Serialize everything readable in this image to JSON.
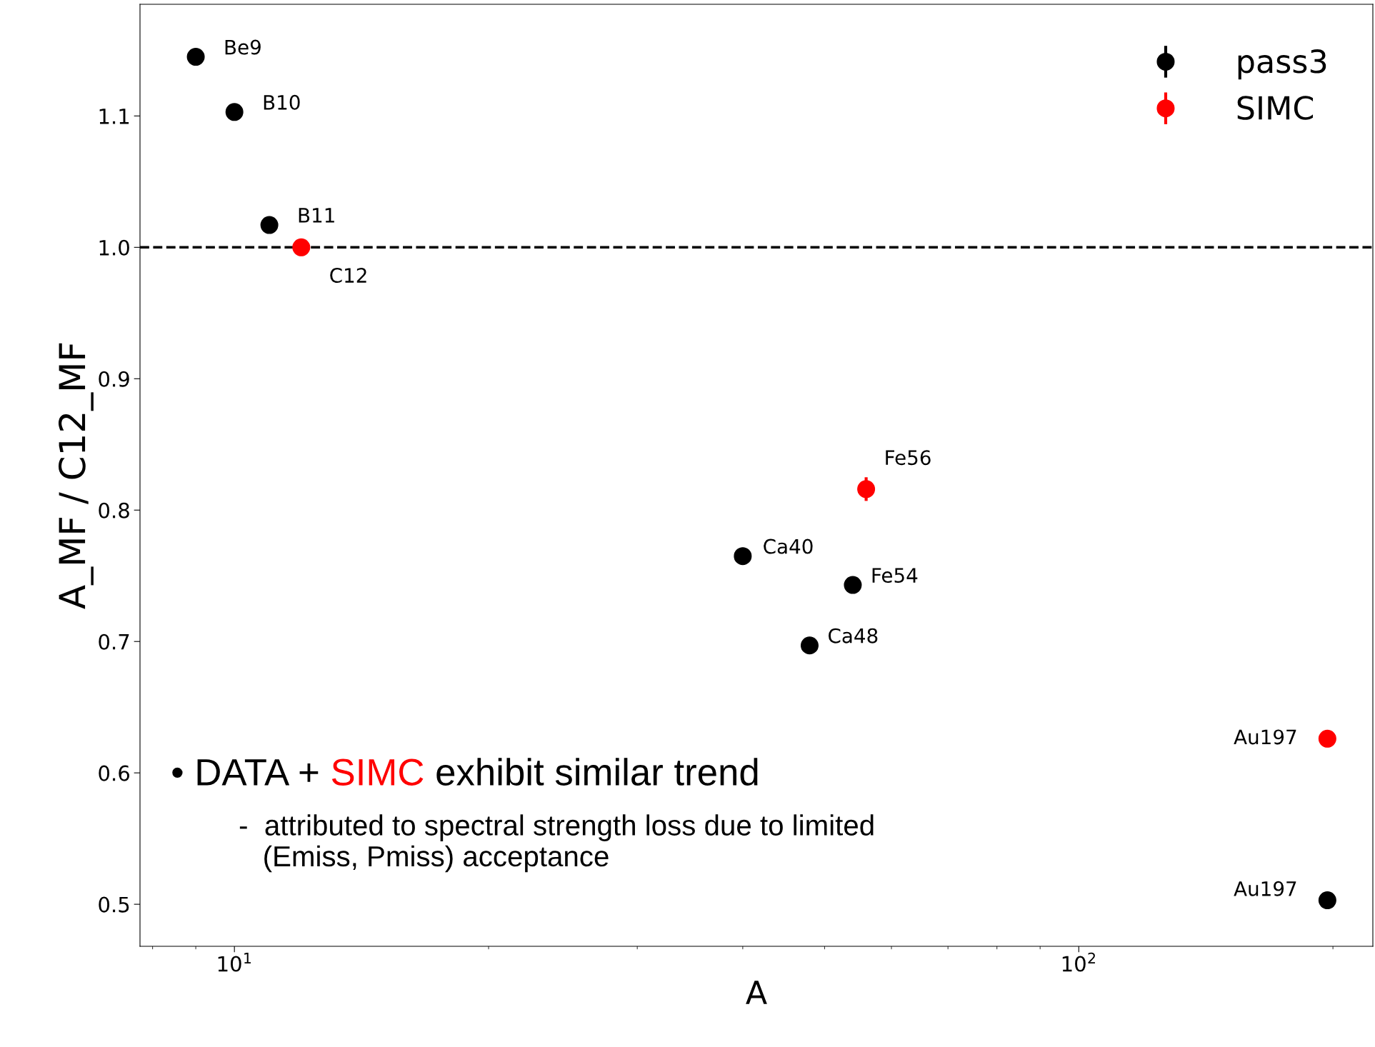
{
  "chart_data": {
    "type": "scatter",
    "xlabel": "A",
    "ylabel": "A_MF / C12_MF",
    "log": "x",
    "xlim": [
      7.73,
      223
    ],
    "xticks": [
      {
        "value": 10,
        "label": "10$^{1}$"
      },
      {
        "value": 100,
        "label": "10$^{2}$"
      }
    ],
    "ylim": [
      0.468,
      1.185
    ],
    "yticks": [
      {
        "value": 0.5,
        "label": "0.5"
      },
      {
        "value": 0.6,
        "label": "0.6"
      },
      {
        "value": 0.7,
        "label": "0.7"
      },
      {
        "value": 0.8,
        "label": "0.8"
      },
      {
        "value": 0.9,
        "label": "0.9"
      },
      {
        "value": 1.0,
        "label": "1.0"
      },
      {
        "value": 1.1,
        "label": "1.1"
      }
    ],
    "grid": false,
    "legend": "top right",
    "marker": "circle",
    "series": [
      {
        "name": "pass3",
        "color": "#000000",
        "x": [
          9,
          10,
          11,
          40,
          54,
          48,
          197
        ],
        "values": [
          1.145,
          1.103,
          1.017,
          0.765,
          0.743,
          0.697,
          0.503
        ],
        "errors": [
          null,
          null,
          null,
          null,
          null,
          null,
          null
        ]
      },
      {
        "name": "SIMC",
        "color": "#ff0000",
        "x": [
          12,
          56,
          197
        ],
        "values": [
          1.0,
          0.816,
          0.626
        ],
        "errors": [
          null,
          0.009,
          null
        ]
      }
    ],
    "ref_lines": [
      {
        "axis": "y",
        "value": 1.0,
        "color": "#000000",
        "line_style": "dashed"
      }
    ],
    "annotations": [
      {
        "text": "Be9",
        "x": 9,
        "y": 1.145
      },
      {
        "text": "B10",
        "x": 10,
        "y": 1.103
      },
      {
        "text": "B11",
        "x": 11,
        "y": 1.017
      },
      {
        "text": "C12",
        "x": 12,
        "y": 1.0
      },
      {
        "text": "Ca40",
        "x": 40,
        "y": 0.765
      },
      {
        "text": "Fe54",
        "x": 54,
        "y": 0.743
      },
      {
        "text": "Ca48",
        "x": 48,
        "y": 0.697
      },
      {
        "text": "Fe56",
        "x": 56,
        "y": 0.816
      },
      {
        "text": "Au197",
        "x": 197,
        "y": 0.626
      },
      {
        "text": "Au197",
        "x": 197,
        "y": 0.503
      },
      "• DATA + SIMC exhibit similar trend",
      "-  attributed to spectral strength loss due to limited\n   (Emiss, Pmiss) acceptance"
    ]
  }
}
